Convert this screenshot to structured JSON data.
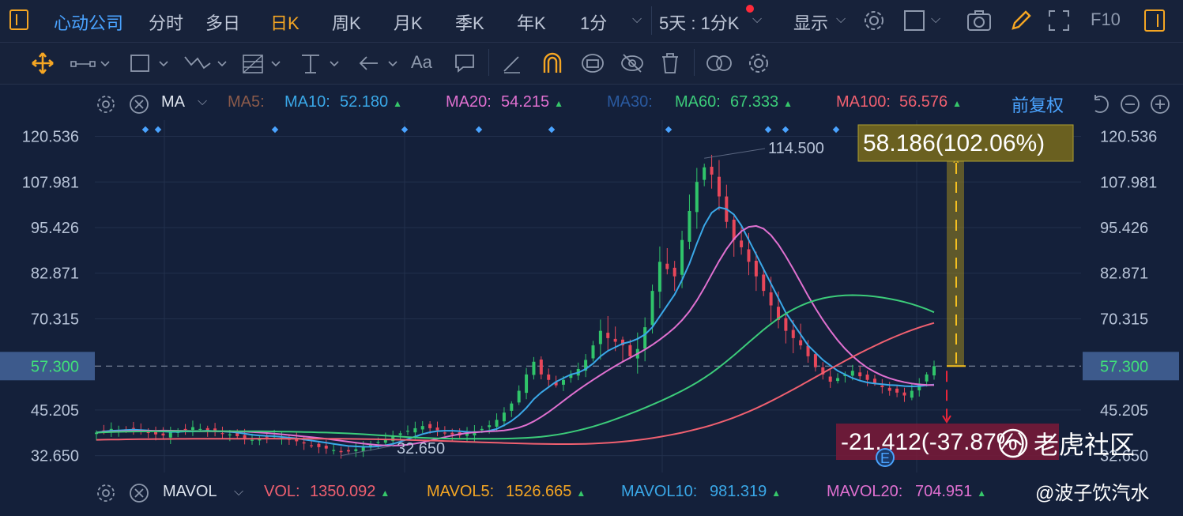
{
  "top_nav": {
    "company": "心动公司",
    "tabs": [
      "分时",
      "多日",
      "日K",
      "周K",
      "月K",
      "季K",
      "年K",
      "1分"
    ],
    "active_tab": "日K",
    "multi_day": "5天 : 1分K",
    "display": "显示",
    "f10": "F10"
  },
  "ma_legend": {
    "indicator": "MA",
    "ma5_label": "MA5:",
    "ma10_label": "MA10:",
    "ma10_value": "52.180",
    "ma20_label": "MA20:",
    "ma20_value": "54.215",
    "ma30_label": "MA30:",
    "ma60_label": "MA60:",
    "ma60_value": "67.333",
    "ma100_label": "MA100:",
    "ma100_value": "56.576",
    "adjust": "前复权",
    "colors": {
      "ma5": "#8b5a4a",
      "ma10": "#3aa8e8",
      "ma20": "#e070d0",
      "ma30": "#2a5aa0",
      "ma60": "#3ccc7a",
      "ma100": "#f06070"
    }
  },
  "vol_legend": {
    "indicator": "MAVOL",
    "vol_label": "VOL:",
    "vol_value": "1350.092",
    "mavol5_label": "MAVOL5:",
    "mavol5_value": "1526.665",
    "mavol10_label": "MAVOL10:",
    "mavol10_value": "981.319",
    "mavol20_label": "MAVOL20:",
    "mavol20_value": "704.951"
  },
  "watermark": {
    "site": "老虎社区",
    "user": "@波子饮汽水"
  },
  "chart_data": {
    "type": "candlestick",
    "y_ticks": [
      "120.536",
      "107.981",
      "95.426",
      "82.871",
      "70.315",
      "57.300",
      "45.205",
      "32.650"
    ],
    "ylim": [
      28,
      125
    ],
    "current_price_label": "57.300",
    "current_price": 57.3,
    "high_label": "114.500",
    "low_label": "32.650",
    "up_measure_label": "58.186(102.06%)",
    "down_measure_label": "-21.412(-37.87%)",
    "event_marker": "E",
    "closes": [
      39,
      39.5,
      40,
      39.6,
      39.8,
      40.2,
      39.5,
      39,
      38.5,
      38.2,
      39,
      39.4,
      39.8,
      40.5,
      40,
      39.6,
      39.2,
      38.8,
      38.5,
      38,
      37.5,
      37,
      37.3,
      37.8,
      38,
      37.6,
      37,
      36.6,
      36,
      35.5,
      35,
      34.6,
      34.2,
      33.6,
      33.8,
      34.4,
      35,
      35.8,
      36.4,
      37.2,
      38,
      38.8,
      39.5,
      40.2,
      40.8,
      40.2,
      39.6,
      39,
      38.5,
      38.2,
      38.8,
      39.4,
      40,
      41,
      42.5,
      44.5,
      47,
      50.5,
      55,
      58.5,
      55,
      53.5,
      52,
      53.5,
      55,
      56.5,
      59,
      63,
      67,
      65,
      64,
      63,
      60,
      62,
      68,
      78,
      86,
      84,
      82,
      92,
      100,
      108,
      112,
      110,
      104,
      97,
      92,
      90,
      86,
      82,
      78,
      74,
      70,
      67,
      65,
      63,
      60,
      57,
      55,
      53,
      54,
      55,
      56,
      54.5,
      53.5,
      52.5,
      51.5,
      50.5,
      50,
      49.2,
      50.5,
      52.5,
      55,
      57.3
    ],
    "ma10": [
      39,
      39.3,
      39.5,
      39.6,
      39.7,
      39.8,
      39.7,
      39.6,
      39.4,
      39.3,
      39.2,
      39.2,
      39.3,
      39.3,
      39.4,
      39.5,
      39.4,
      39.3,
      39.2,
      39.0,
      38.7,
      38.4,
      38.2,
      38.1,
      38.0,
      37.8,
      37.6,
      37.4,
      37.1,
      36.8,
      36.5,
      36.2,
      35.9,
      35.6,
      35.3,
      35.2,
      35.1,
      35.1,
      35.2,
      35.5,
      35.9,
      36.5,
      37.2,
      37.9,
      38.6,
      39.1,
      39.4,
      39.5,
      39.5,
      39.4,
      39.2,
      39.1,
      39.2,
      39.5,
      40,
      41,
      42.2,
      43.8,
      45.8,
      48.2,
      50,
      51.5,
      53,
      54,
      55,
      55.5,
      56.5,
      58,
      60,
      61.5,
      62.5,
      63.5,
      64,
      64.8,
      66,
      68,
      71,
      74,
      77,
      81,
      85.5,
      91,
      96,
      99.5,
      101,
      100.5,
      99,
      96,
      92,
      88,
      84,
      80,
      76,
      72,
      69,
      66,
      63,
      61,
      59,
      57.5,
      56,
      55,
      54,
      53.3,
      52.8,
      52.5,
      52.3,
      52.1,
      52,
      51.8,
      51.7,
      51.8,
      52,
      52.2
    ]
  }
}
